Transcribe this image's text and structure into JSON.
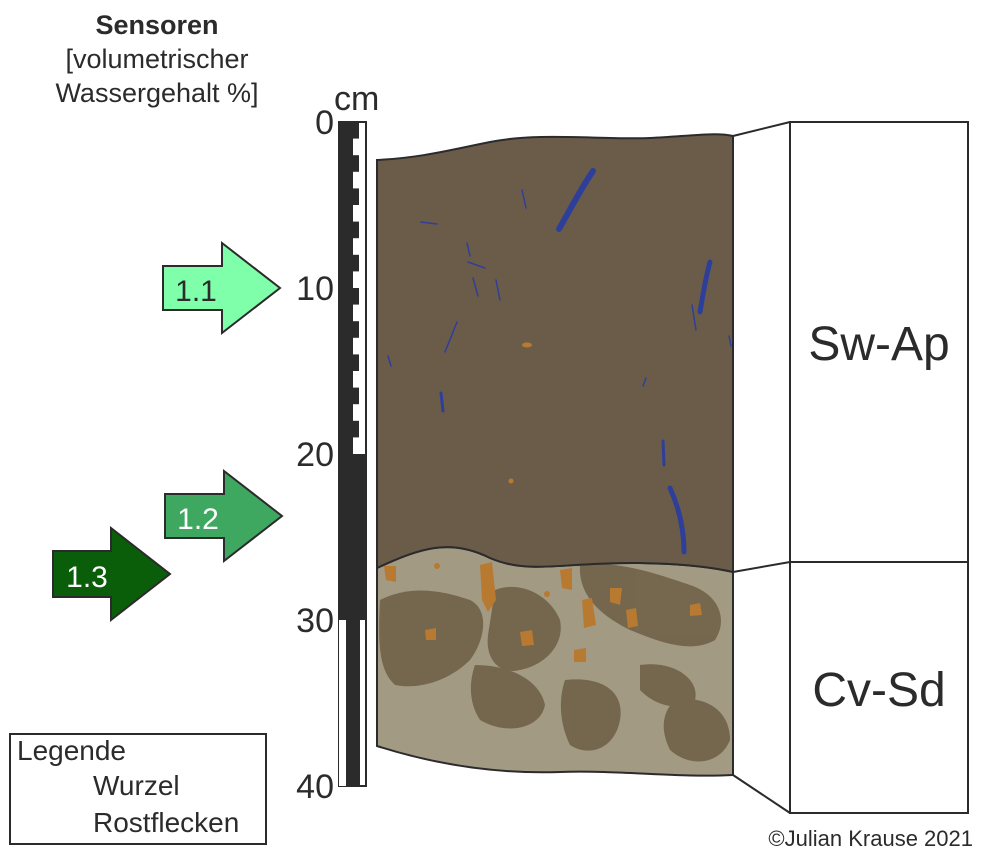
{
  "header": {
    "title": "Sensoren",
    "subtitle_line1": "[volumetrischer",
    "subtitle_line2": "Wassergehalt %]"
  },
  "scale": {
    "unit": "cm",
    "ticks": [
      "0",
      "10",
      "20",
      "30",
      "40"
    ]
  },
  "sensors": [
    {
      "label": "1.1",
      "depth_cm": 10,
      "color": "#7fffaa"
    },
    {
      "label": "1.2",
      "depth_cm": 23,
      "color": "#3fa860"
    },
    {
      "label": "1.3",
      "depth_cm": 27,
      "color": "#0a5e0a"
    }
  ],
  "horizons": [
    {
      "name": "Sw-Ap",
      "color": "#6b5c4a"
    },
    {
      "name": "Cv-Sd",
      "color": "#a39a84"
    }
  ],
  "legend": {
    "title": "Legende",
    "items": [
      {
        "label": "Wurzel",
        "icon": "root-icon",
        "color": "#2e3f9a"
      },
      {
        "label": "Rostflecken",
        "icon": "rust-stain-icon",
        "color": "#b87a30"
      }
    ]
  },
  "copyright": "©Julian Krause 2021"
}
